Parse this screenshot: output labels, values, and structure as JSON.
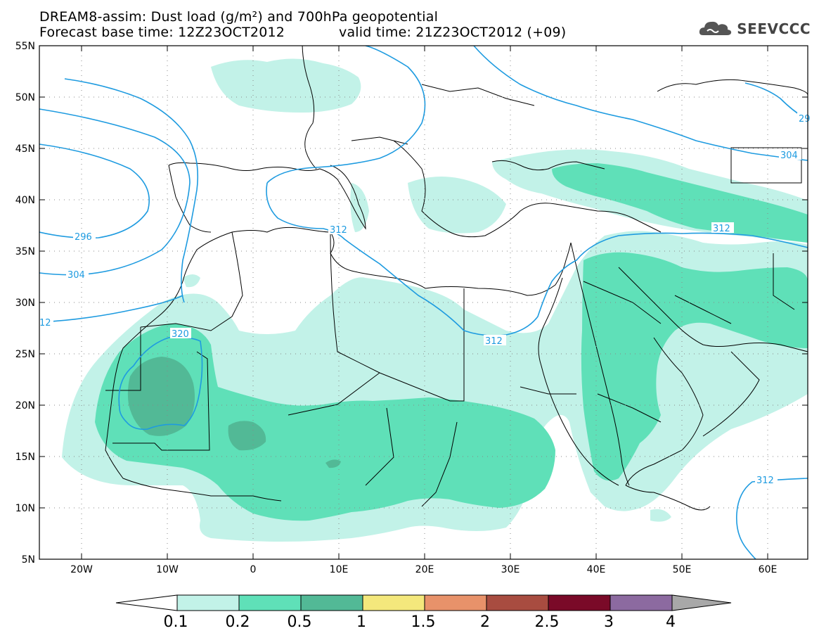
{
  "header": {
    "line1": "DREAM8-assim: Dust load (g/m²) and 700hPa geopotential",
    "base_time": "Forecast base time: 12Z23OCT2012",
    "valid_time": "valid time: 21Z23OCT2012 (+09)"
  },
  "logo": {
    "text": "SEEVCCC",
    "icon": "cloud-icon"
  },
  "map": {
    "lon_labels": [
      "20W",
      "10W",
      "0",
      "10E",
      "20E",
      "30E",
      "40E",
      "50E",
      "60E"
    ],
    "lat_labels": [
      "55N",
      "50N",
      "45N",
      "40N",
      "35N",
      "30N",
      "25N",
      "20N",
      "15N",
      "10N",
      "5N"
    ],
    "contour_labels": [
      "296",
      "304",
      "12",
      "320",
      "312",
      "312",
      "312",
      "312",
      "304",
      "29"
    ],
    "contour_color": "#1e9be0",
    "coastline_color": "#000000",
    "grid_style": "dotted"
  },
  "colorbar": {
    "labels": [
      "0.1",
      "0.2",
      "0.5",
      "1",
      "1.5",
      "2",
      "2.5",
      "3",
      "4"
    ],
    "colors": [
      "#c2f2e8",
      "#5fe0b8",
      "#52b996",
      "#f4e87c",
      "#e8926a",
      "#a84c40",
      "#7a0a28",
      "#8c6aa0",
      "#a8a8a8"
    ]
  }
}
